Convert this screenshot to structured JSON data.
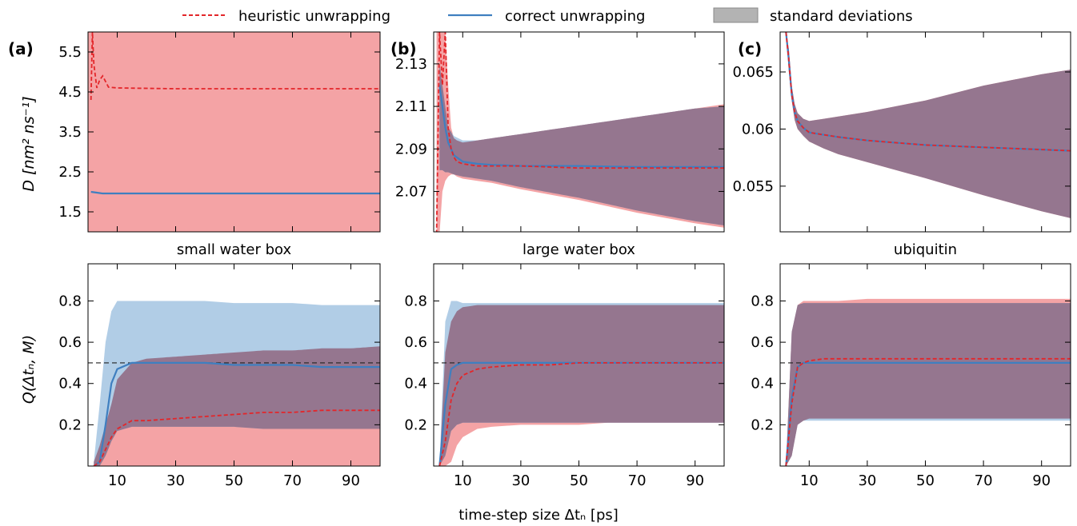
{
  "figure": {
    "xlabel": "time-step size Δtₙ [ps]",
    "legend": [
      {
        "label": "heuristic unwrapping",
        "style": "dashed",
        "color": "#e3262a"
      },
      {
        "label": "correct unwrapping",
        "style": "solid",
        "color": "#3f7fc0"
      },
      {
        "label": "standard deviations",
        "style": "patch",
        "color": "#b3b3b3"
      }
    ],
    "ylabel_top": "D [nm² ns⁻¹]",
    "ylabel_bottom": "Q(Δtₙ, M)",
    "colors": {
      "heuristic": "#e3262a",
      "correct": "#3f7fc0",
      "heur_fill": "#f4a3a5",
      "corr_fill": "#a9c8e3",
      "overlap_fill": "#95768f"
    }
  },
  "chart_data": [
    {
      "type": "line",
      "panel": "(a)",
      "row": "top",
      "title": "",
      "ylabel": "D [nm² ns⁻¹]",
      "xlim": [
        0,
        100
      ],
      "ylim": [
        1.0,
        6.0
      ],
      "yticks": [
        1.5,
        2.5,
        3.5,
        4.5,
        5.5
      ],
      "ytick_labels": [
        "1.5",
        "2.5",
        "3.5",
        "4.5",
        "5.5"
      ],
      "xticks": [
        10,
        30,
        50,
        70,
        90
      ],
      "show_xtick_labels": false,
      "series": [
        {
          "name": "heuristic unwrapping",
          "x": [
            1,
            1.5,
            2,
            3,
            4,
            5,
            7,
            10,
            30,
            50,
            70,
            90,
            100
          ],
          "y": [
            4.3,
            6.0,
            5.2,
            4.6,
            4.8,
            4.9,
            4.62,
            4.6,
            4.58,
            4.58,
            4.58,
            4.58,
            4.58
          ],
          "std_low_const": 1.0,
          "std_high_const": 6.0
        },
        {
          "name": "correct unwrapping",
          "x": [
            1,
            3,
            5,
            10,
            30,
            50,
            70,
            90,
            100
          ],
          "y": [
            2.0,
            1.98,
            1.96,
            1.96,
            1.96,
            1.96,
            1.96,
            1.96,
            1.96
          ]
        }
      ]
    },
    {
      "type": "line",
      "panel": "(b)",
      "row": "top",
      "title": "",
      "ylabel": "",
      "xlim": [
        0,
        100
      ],
      "ylim": [
        2.051,
        2.145
      ],
      "yticks": [
        2.07,
        2.09,
        2.11,
        2.13
      ],
      "ytick_labels": [
        "2.07",
        "2.09",
        "2.11",
        "2.13"
      ],
      "xticks": [
        10,
        30,
        50,
        70,
        90
      ],
      "show_xtick_labels": false,
      "series": [
        {
          "name": "heuristic unwrapping",
          "x": [
            1,
            2,
            3,
            4,
            5,
            6,
            7,
            8,
            10,
            15,
            20,
            30,
            50,
            70,
            90,
            100
          ],
          "y": [
            2.05,
            2.145,
            2.12,
            2.145,
            2.1,
            2.09,
            2.086,
            2.084,
            2.083,
            2.082,
            2.082,
            2.082,
            2.081,
            2.081,
            2.081,
            2.081
          ],
          "std_low": [
            2.05,
            2.05,
            2.07,
            2.075,
            2.077,
            2.078,
            2.078,
            2.077,
            2.076,
            2.075,
            2.074,
            2.071,
            2.066,
            2.06,
            2.055,
            2.053
          ],
          "std_high": [
            2.145,
            2.145,
            2.145,
            2.145,
            2.12,
            2.1,
            2.095,
            2.094,
            2.093,
            2.094,
            2.095,
            2.097,
            2.101,
            2.105,
            2.109,
            2.111
          ]
        },
        {
          "name": "correct unwrapping",
          "x": [
            2,
            3,
            4,
            5,
            7,
            10,
            15,
            20,
            30,
            50,
            70,
            90,
            100
          ],
          "y": [
            2.12,
            2.11,
            2.1,
            2.093,
            2.087,
            2.084,
            2.083,
            2.0825,
            2.082,
            2.082,
            2.0815,
            2.0815,
            2.0815
          ],
          "std_low": [
            2.08,
            2.08,
            2.079,
            2.079,
            2.078,
            2.077,
            2.076,
            2.075,
            2.072,
            2.067,
            2.061,
            2.056,
            2.054
          ],
          "std_high": [
            2.13,
            2.12,
            2.11,
            2.1,
            2.096,
            2.094,
            2.094,
            2.095,
            2.097,
            2.101,
            2.105,
            2.109,
            2.11
          ]
        }
      ]
    },
    {
      "type": "line",
      "panel": "(c)",
      "row": "top",
      "title": "",
      "ylabel": "",
      "xlim": [
        0,
        100
      ],
      "ylim": [
        0.051,
        0.0685
      ],
      "yticks": [
        0.055,
        0.06,
        0.065
      ],
      "ytick_labels": [
        "0.055",
        "0.06",
        "0.065"
      ],
      "xticks": [
        10,
        30,
        50,
        70,
        90
      ],
      "show_xtick_labels": false,
      "series": [
        {
          "name": "heuristic unwrapping",
          "x": [
            2,
            3,
            4,
            5,
            6,
            8,
            10,
            15,
            20,
            30,
            50,
            70,
            90,
            100
          ],
          "y": [
            0.0685,
            0.066,
            0.063,
            0.0615,
            0.0607,
            0.0601,
            0.0597,
            0.0595,
            0.0593,
            0.059,
            0.0586,
            0.0584,
            0.0582,
            0.0581
          ],
          "std_low": [
            0.0685,
            0.065,
            0.0625,
            0.0608,
            0.06,
            0.0594,
            0.0589,
            0.0583,
            0.0578,
            0.0571,
            0.0557,
            0.0542,
            0.0528,
            0.0522
          ],
          "std_high": [
            0.0685,
            0.067,
            0.0638,
            0.0622,
            0.0614,
            0.0609,
            0.0607,
            0.0609,
            0.0611,
            0.0615,
            0.0625,
            0.0638,
            0.0648,
            0.0652
          ]
        },
        {
          "name": "correct unwrapping",
          "x": [
            2,
            3,
            4,
            5,
            6,
            8,
            10,
            15,
            20,
            30,
            50,
            70,
            90,
            100
          ],
          "y": [
            0.0685,
            0.066,
            0.063,
            0.0615,
            0.0607,
            0.0601,
            0.0597,
            0.0595,
            0.0593,
            0.059,
            0.0586,
            0.0584,
            0.0582,
            0.0581
          ]
        }
      ]
    },
    {
      "type": "line",
      "panel": "(a)",
      "row": "bottom",
      "title": "small water box",
      "ylabel": "Q(Δtₙ, M)",
      "xlim": [
        0,
        100
      ],
      "ylim": [
        0.0,
        0.98
      ],
      "yticks": [
        0.2,
        0.4,
        0.6,
        0.8
      ],
      "ytick_labels": [
        "0.2",
        "0.4",
        "0.6",
        "0.8"
      ],
      "xticks": [
        10,
        30,
        50,
        70,
        90
      ],
      "xtick_labels": [
        "10",
        "30",
        "50",
        "70",
        "90"
      ],
      "reference_line": 0.5,
      "series": [
        {
          "name": "heuristic unwrapping",
          "x": [
            2,
            4,
            6,
            8,
            10,
            15,
            20,
            30,
            40,
            50,
            60,
            70,
            80,
            90,
            100
          ],
          "y": [
            0.0,
            0.02,
            0.08,
            0.14,
            0.18,
            0.22,
            0.22,
            0.23,
            0.24,
            0.25,
            0.26,
            0.26,
            0.27,
            0.27,
            0.27
          ],
          "std_low": [
            0.0,
            0.0,
            0.0,
            0.0,
            0.0,
            0.0,
            0.0,
            0.0,
            0.0,
            0.0,
            0.0,
            0.0,
            0.0,
            0.0,
            0.0
          ],
          "std_high": [
            0.02,
            0.1,
            0.2,
            0.3,
            0.42,
            0.5,
            0.52,
            0.53,
            0.54,
            0.55,
            0.56,
            0.56,
            0.57,
            0.57,
            0.58
          ]
        },
        {
          "name": "correct unwrapping",
          "x": [
            2,
            4,
            6,
            8,
            10,
            15,
            20,
            30,
            40,
            50,
            60,
            70,
            80,
            90,
            100
          ],
          "y": [
            0.0,
            0.02,
            0.2,
            0.4,
            0.47,
            0.5,
            0.5,
            0.5,
            0.5,
            0.49,
            0.49,
            0.49,
            0.48,
            0.48,
            0.48
          ],
          "std_low": [
            0.0,
            0.0,
            0.05,
            0.12,
            0.17,
            0.19,
            0.19,
            0.19,
            0.19,
            0.19,
            0.18,
            0.18,
            0.18,
            0.18,
            0.18
          ],
          "std_high": [
            0.02,
            0.3,
            0.6,
            0.75,
            0.8,
            0.8,
            0.8,
            0.8,
            0.8,
            0.79,
            0.79,
            0.79,
            0.78,
            0.78,
            0.78
          ]
        }
      ]
    },
    {
      "type": "line",
      "panel": "(b)",
      "row": "bottom",
      "title": "large water box",
      "ylabel": "",
      "xlim": [
        0,
        100
      ],
      "ylim": [
        0.0,
        0.98
      ],
      "yticks": [
        0.2,
        0.4,
        0.6,
        0.8
      ],
      "ytick_labels": [
        "0.2",
        "0.4",
        "0.6",
        "0.8"
      ],
      "xticks": [
        10,
        30,
        50,
        70,
        90
      ],
      "xtick_labels": [
        "10",
        "30",
        "50",
        "70",
        "90"
      ],
      "reference_line": 0.5,
      "series": [
        {
          "name": "heuristic unwrapping",
          "x": [
            2,
            4,
            6,
            8,
            10,
            15,
            20,
            30,
            40,
            50,
            60,
            70,
            80,
            90,
            100
          ],
          "y": [
            0.0,
            0.12,
            0.32,
            0.4,
            0.44,
            0.47,
            0.48,
            0.49,
            0.49,
            0.5,
            0.5,
            0.5,
            0.5,
            0.5,
            0.5
          ],
          "std_low": [
            0.0,
            0.0,
            0.02,
            0.1,
            0.14,
            0.18,
            0.19,
            0.2,
            0.2,
            0.2,
            0.21,
            0.21,
            0.21,
            0.21,
            0.21
          ],
          "std_high": [
            0.0,
            0.55,
            0.7,
            0.75,
            0.77,
            0.78,
            0.78,
            0.78,
            0.78,
            0.78,
            0.78,
            0.78,
            0.78,
            0.78,
            0.78
          ]
        },
        {
          "name": "correct unwrapping",
          "x": [
            2,
            4,
            6,
            8,
            10,
            15,
            20,
            30,
            40,
            50,
            60,
            70,
            80,
            90,
            100
          ],
          "y": [
            0.0,
            0.3,
            0.47,
            0.49,
            0.5,
            0.5,
            0.5,
            0.5,
            0.5,
            0.5,
            0.5,
            0.5,
            0.5,
            0.5,
            0.5
          ],
          "std_low": [
            0.0,
            0.05,
            0.17,
            0.2,
            0.21,
            0.21,
            0.21,
            0.21,
            0.21,
            0.21,
            0.21,
            0.21,
            0.21,
            0.21,
            0.21
          ],
          "std_high": [
            0.0,
            0.7,
            0.8,
            0.8,
            0.79,
            0.79,
            0.79,
            0.79,
            0.79,
            0.79,
            0.79,
            0.79,
            0.79,
            0.79,
            0.79
          ]
        }
      ]
    },
    {
      "type": "line",
      "panel": "(c)",
      "row": "bottom",
      "title": "ubiquitin",
      "ylabel": "",
      "xlim": [
        0,
        100
      ],
      "ylim": [
        0.0,
        0.98
      ],
      "yticks": [
        0.2,
        0.4,
        0.6,
        0.8
      ],
      "ytick_labels": [
        "0.2",
        "0.4",
        "0.6",
        "0.8"
      ],
      "xticks": [
        10,
        30,
        50,
        70,
        90
      ],
      "xtick_labels": [
        "10",
        "30",
        "50",
        "70",
        "90"
      ],
      "reference_line": 0.5,
      "series": [
        {
          "name": "heuristic unwrapping",
          "x": [
            2,
            4,
            6,
            8,
            10,
            15,
            20,
            30,
            40,
            50,
            60,
            70,
            80,
            90,
            100
          ],
          "y": [
            0.0,
            0.3,
            0.48,
            0.5,
            0.51,
            0.52,
            0.52,
            0.52,
            0.52,
            0.52,
            0.52,
            0.52,
            0.52,
            0.52,
            0.52
          ],
          "std_low": [
            0.0,
            0.05,
            0.2,
            0.22,
            0.23,
            0.23,
            0.23,
            0.23,
            0.23,
            0.23,
            0.23,
            0.23,
            0.23,
            0.23,
            0.23
          ],
          "std_high": [
            0.0,
            0.65,
            0.78,
            0.8,
            0.8,
            0.8,
            0.8,
            0.81,
            0.81,
            0.81,
            0.81,
            0.81,
            0.81,
            0.81,
            0.81
          ]
        },
        {
          "name": "correct unwrapping",
          "x": [
            2,
            4,
            6,
            8,
            10,
            15,
            20,
            30,
            40,
            50,
            60,
            70,
            80,
            90,
            100
          ],
          "y": [
            0.0,
            0.33,
            0.48,
            0.5,
            0.5,
            0.5,
            0.5,
            0.5,
            0.5,
            0.5,
            0.5,
            0.5,
            0.5,
            0.5,
            0.5
          ],
          "std_low": [
            0.0,
            0.05,
            0.2,
            0.22,
            0.22,
            0.22,
            0.22,
            0.22,
            0.22,
            0.22,
            0.22,
            0.22,
            0.22,
            0.22,
            0.22
          ],
          "std_high": [
            0.0,
            0.65,
            0.78,
            0.79,
            0.79,
            0.79,
            0.79,
            0.79,
            0.79,
            0.79,
            0.79,
            0.79,
            0.79,
            0.79,
            0.79
          ]
        }
      ]
    }
  ]
}
